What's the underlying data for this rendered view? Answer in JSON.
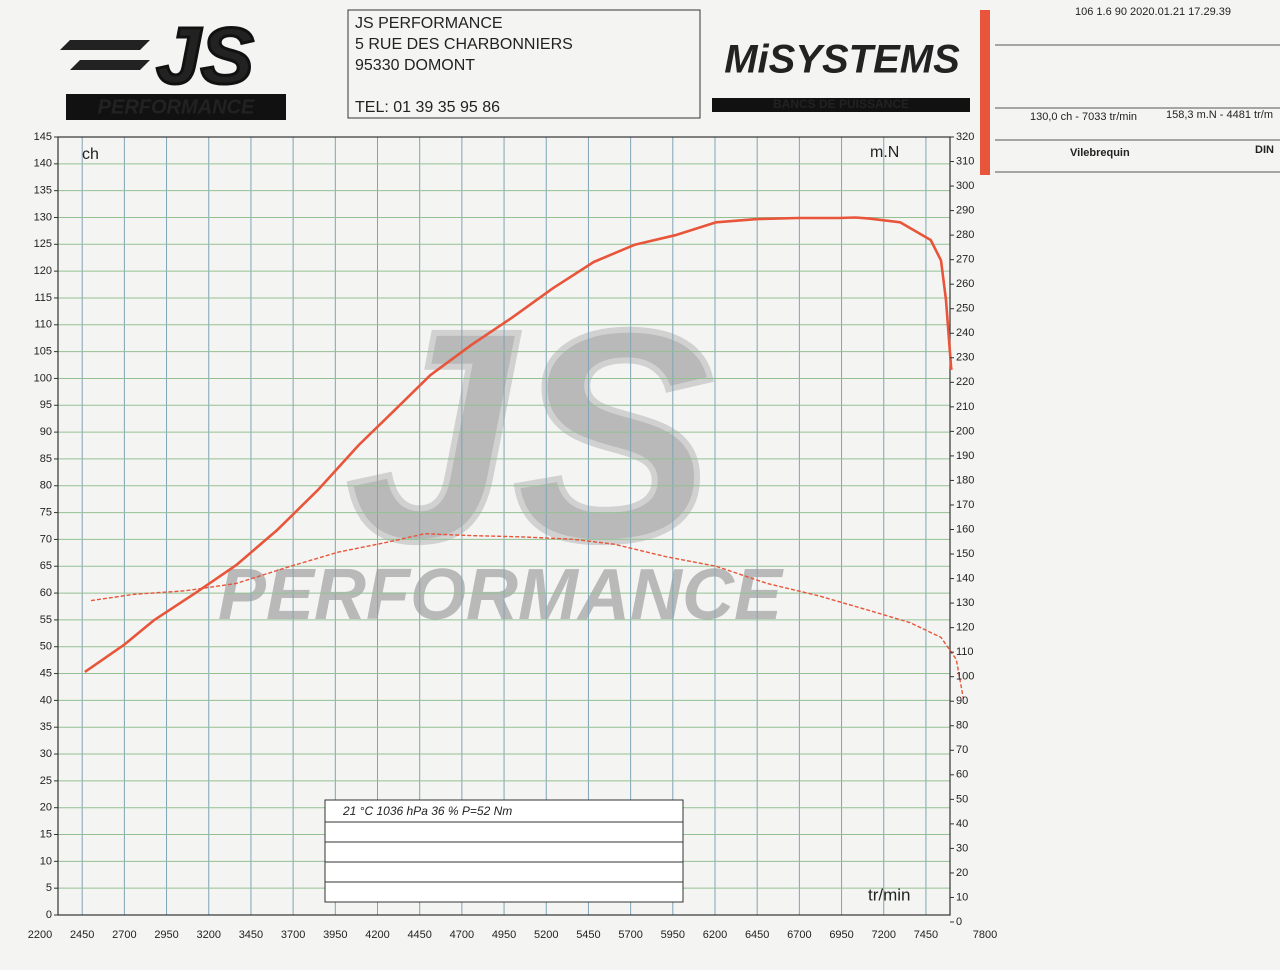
{
  "header": {
    "logo_left": {
      "big": "JS",
      "small": "PERFORMANCE"
    },
    "address": [
      "JS PERFORMANCE",
      "5 RUE DES CHARBONNIERS",
      "95330 DOMONT",
      "TEL: 01 39 35 95 86"
    ],
    "logo_right": {
      "big": "MiSYSTEMS",
      "small": "BANCS DE PUISSANCE"
    },
    "stamp": "106 1.6 90   2020.01.21 17.29.39",
    "results": [
      "130,0 ch - 7033 tr/min",
      "158,3 m.N - 4481 tr/m"
    ],
    "crank": "Vilebrequin",
    "norm": "DIN",
    "watermark": {
      "big": "JS",
      "small": "PERFORMANCE"
    }
  },
  "chart_data": {
    "type": "line",
    "y_label": "ch",
    "y2_label": "m.N",
    "x_label": "tr/min",
    "conditions": "21 °C   1036 hPa   36 %      P=52 Nm",
    "xlim": [
      2200,
      7800
    ],
    "xticks": [
      2200,
      2450,
      2700,
      2950,
      3200,
      3450,
      3700,
      3950,
      4200,
      4450,
      4700,
      4950,
      5200,
      5450,
      5700,
      5950,
      6200,
      6450,
      6700,
      6950,
      7200,
      7450,
      7800
    ],
    "ylim": [
      0,
      145
    ],
    "yticks": [
      0,
      5,
      10,
      15,
      20,
      25,
      30,
      35,
      40,
      45,
      50,
      55,
      60,
      65,
      70,
      75,
      80,
      85,
      90,
      95,
      100,
      105,
      110,
      115,
      120,
      125,
      130,
      135,
      140,
      145
    ],
    "y2lim": [
      0,
      320
    ],
    "y2ticks": [
      0,
      10,
      20,
      30,
      40,
      50,
      60,
      70,
      80,
      90,
      100,
      110,
      120,
      130,
      140,
      150,
      160,
      170,
      180,
      190,
      200,
      210,
      220,
      230,
      240,
      250,
      260,
      270,
      280,
      290,
      300,
      310,
      320
    ],
    "grid": true,
    "series": [
      {
        "color": "#e8553a",
        "axis": "y",
        "dashed": false,
        "x": [
          2466,
          2696,
          2878,
          3120,
          3362,
          3604,
          3846,
          4089,
          4331,
          4513,
          4754,
          4996,
          5239,
          5481,
          5723,
          5965,
          6207,
          6449,
          6691,
          6933,
          7033,
          7115,
          7297,
          7478,
          7539,
          7569,
          7600
        ],
        "values": [
          45.3,
          50.3,
          55,
          60,
          65.2,
          71.7,
          79.2,
          87.6,
          95,
          100.6,
          106.2,
          111.3,
          116.8,
          121.7,
          124.9,
          126.7,
          129.1,
          129.7,
          129.9,
          129.9,
          130,
          129.8,
          129.1,
          125.8,
          122,
          114.6,
          101.6
        ]
      },
      {
        "color": "#e8553a",
        "axis": "y2",
        "dashed": true,
        "x": [
          2502,
          2757,
          3060,
          3362,
          3665,
          3968,
          4270,
          4481,
          4754,
          5060,
          5360,
          5602,
          5905,
          6207,
          6510,
          6812,
          7115,
          7357,
          7539,
          7630,
          7672
        ],
        "values": [
          131,
          133.6,
          135,
          138,
          144.6,
          150.8,
          155,
          158.3,
          157.5,
          157,
          156,
          154,
          149,
          145,
          138,
          133,
          127,
          122,
          116,
          107,
          91
        ]
      }
    ]
  }
}
